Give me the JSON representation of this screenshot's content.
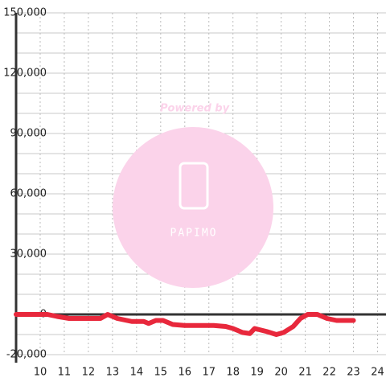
{
  "chart_data": {
    "type": "line",
    "x": [
      9,
      10.3,
      10.7,
      11.2,
      12.5,
      12.8,
      13.2,
      13.8,
      14.3,
      14.5,
      14.8,
      15.1,
      15.5,
      16,
      17.2,
      17.7,
      18,
      18.4,
      18.7,
      18.9,
      19.4,
      19.8,
      20.1,
      20.5,
      20.8,
      21.1,
      21.5,
      21.9,
      22.3,
      23
    ],
    "series": [
      {
        "color": "#e8283c",
        "values": [
          0,
          0,
          -1000,
          -2000,
          -2000,
          0,
          -2000,
          -3500,
          -3500,
          -4500,
          -3000,
          -3000,
          -5000,
          -5500,
          -5500,
          -6000,
          -7000,
          -9000,
          -9500,
          -7000,
          -8500,
          -10000,
          -9000,
          -6000,
          -2000,
          0,
          0,
          -2000,
          -3000,
          -3000
        ]
      }
    ],
    "xlim": [
      9,
      24.35
    ],
    "xticks": [
      10,
      11,
      12,
      13,
      14,
      15,
      16,
      17,
      18,
      19,
      20,
      21,
      22,
      23,
      24
    ],
    "ylim": [
      -20000,
      150000
    ],
    "yticks": [
      {
        "value": -20000,
        "label": "-20,000"
      },
      {
        "value": 0,
        "label": "0"
      },
      {
        "value": 30000,
        "label": "30,000"
      },
      {
        "value": 60000,
        "label": "60,000"
      },
      {
        "value": 90000,
        "label": "90,000"
      },
      {
        "value": 120000,
        "label": "120,000"
      },
      {
        "value": 150000,
        "label": "150,000"
      }
    ],
    "y_minor_grid": [
      -10000,
      10000,
      20000,
      40000,
      50000,
      70000,
      80000,
      100000,
      110000,
      130000,
      140000
    ],
    "grid": true,
    "watermark": {
      "top": "Powered by",
      "brand": "PAPIMO"
    }
  }
}
